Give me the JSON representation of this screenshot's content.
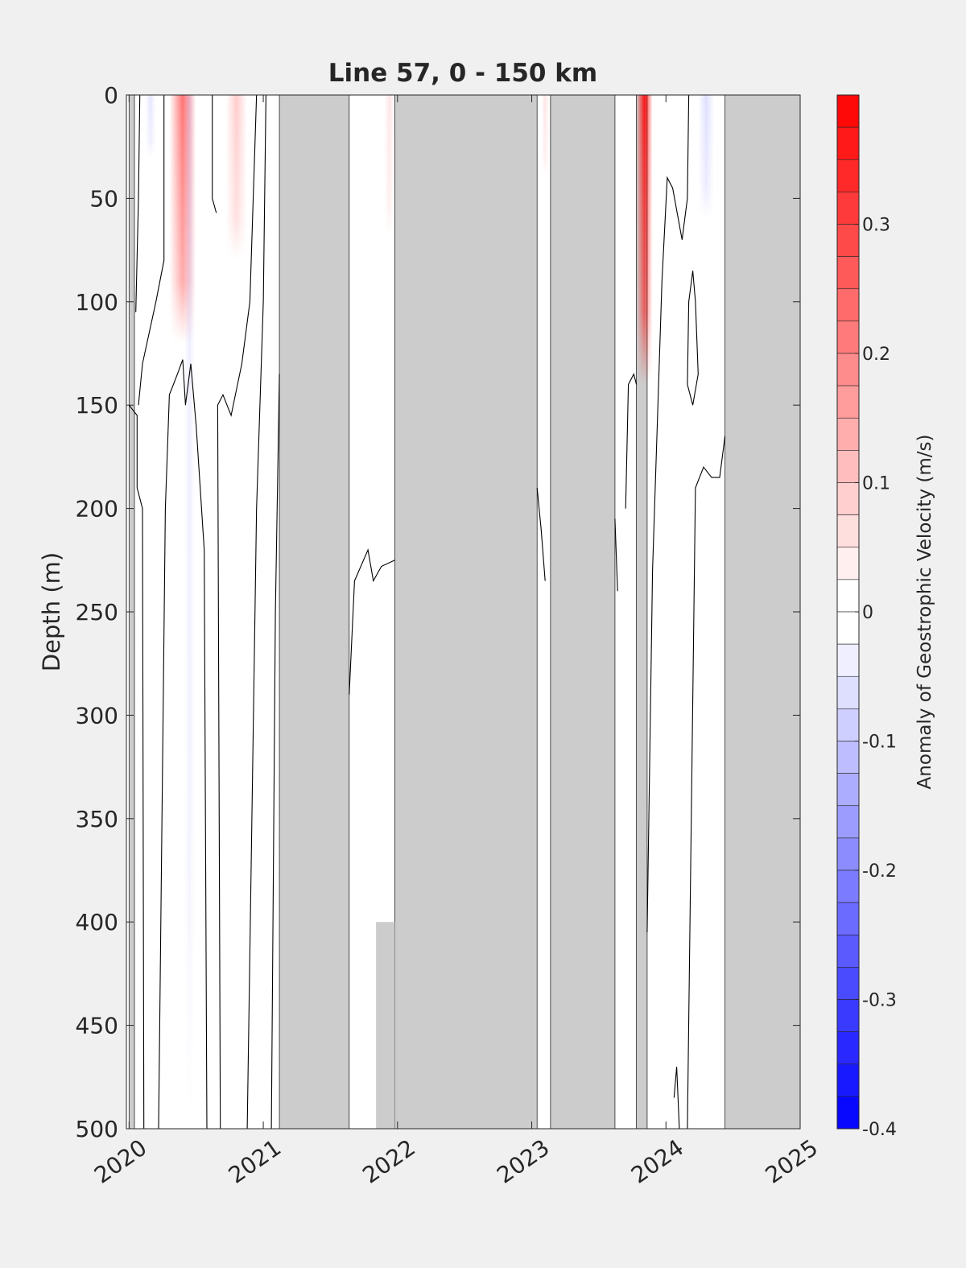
{
  "chart_data": {
    "type": "heatmap",
    "title": "Line 57, 0 - 150 km",
    "ylabel": "Depth (m)",
    "xlabel": "",
    "x_tick_labels": [
      "2020",
      "2021",
      "2022",
      "2023",
      "2024",
      "2025"
    ],
    "x_tick_values": [
      2020,
      2021,
      2022,
      2023,
      2024,
      2025
    ],
    "xlim": [
      2019.98,
      2025.0
    ],
    "y_tick_labels": [
      "0",
      "50",
      "100",
      "150",
      "200",
      "250",
      "300",
      "350",
      "400",
      "450",
      "500"
    ],
    "y_tick_values": [
      0,
      50,
      100,
      150,
      200,
      250,
      300,
      350,
      400,
      450,
      500
    ],
    "ylim": [
      0,
      500
    ],
    "y_reversed": true,
    "grid": false,
    "colorbar": {
      "label": "Anomaly of Geostrophic Velocity (m/s)",
      "range": [
        -0.4,
        0.4
      ],
      "tick_labels": [
        "0.3",
        "0.2",
        "0.1",
        "0",
        "-0.1",
        "-0.2",
        "-0.3",
        "-0.4"
      ],
      "tick_values": [
        0.3,
        0.2,
        0.1,
        0,
        -0.1,
        -0.2,
        -0.3,
        -0.4
      ],
      "levels": 32,
      "low_color": "#0000ff",
      "mid_color": "#ffffff",
      "high_color": "#ff0000"
    },
    "no_data_color": "#cccccc",
    "no_data_periods": [
      {
        "start": 2020.0,
        "end": 2020.04
      },
      {
        "start": 2021.12,
        "end": 2021.64
      },
      {
        "start": 2021.98,
        "end": 2023.04
      },
      {
        "start": 2023.14,
        "end": 2023.62
      },
      {
        "start": 2023.78,
        "end": 2023.86
      },
      {
        "start": 2024.44,
        "end": 2025.0
      }
    ],
    "no_data_partial": [
      {
        "start": 2021.84,
        "end": 2021.98,
        "depth_from": 400,
        "depth_to": 500
      }
    ],
    "anomaly_cores": [
      {
        "time": 2020.4,
        "half_width": 0.1,
        "depth_max": 120,
        "value": 0.22
      },
      {
        "time": 2020.8,
        "half_width": 0.08,
        "depth_max": 80,
        "value": 0.08
      },
      {
        "time": 2023.84,
        "half_width": 0.06,
        "depth_max": 140,
        "value": 0.36
      },
      {
        "time": 2023.1,
        "half_width": 0.03,
        "depth_max": 40,
        "value": 0.04
      },
      {
        "time": 2021.94,
        "half_width": 0.04,
        "depth_max": 70,
        "value": 0.04
      },
      {
        "time": 2020.16,
        "half_width": 0.04,
        "depth_max": 30,
        "value": -0.04
      },
      {
        "time": 2024.3,
        "half_width": 0.06,
        "depth_max": 60,
        "value": -0.05
      },
      {
        "time": 2020.45,
        "half_width": 0.04,
        "depth_max": 500,
        "value": -0.03
      }
    ],
    "contour_lines": [
      {
        "points": [
          [
            2020.05,
            105
          ],
          [
            2020.07,
            50
          ],
          [
            2020.08,
            0
          ]
        ]
      },
      {
        "points": [
          [
            2020.0,
            150
          ],
          [
            2020.06,
            155
          ],
          [
            2020.06,
            190
          ],
          [
            2020.1,
            200
          ],
          [
            2020.11,
            500
          ]
        ]
      },
      {
        "points": [
          [
            2020.07,
            150
          ],
          [
            2020.1,
            130
          ],
          [
            2020.2,
            100
          ],
          [
            2020.26,
            80
          ],
          [
            2020.26,
            0
          ]
        ]
      },
      {
        "points": [
          [
            2020.22,
            500
          ],
          [
            2020.27,
            200
          ],
          [
            2020.3,
            145
          ],
          [
            2020.36,
            135
          ],
          [
            2020.4,
            128
          ],
          [
            2020.42,
            150
          ],
          [
            2020.46,
            130
          ],
          [
            2020.5,
            160
          ],
          [
            2020.56,
            220
          ],
          [
            2020.58,
            500
          ]
        ]
      },
      {
        "points": [
          [
            2020.62,
            0
          ],
          [
            2020.62,
            50
          ],
          [
            2020.65,
            57
          ]
        ]
      },
      {
        "points": [
          [
            2020.68,
            500
          ],
          [
            2020.66,
            150
          ],
          [
            2020.7,
            145
          ],
          [
            2020.73,
            150
          ],
          [
            2020.76,
            155
          ],
          [
            2020.84,
            130
          ],
          [
            2020.9,
            100
          ],
          [
            2020.95,
            0
          ]
        ]
      },
      {
        "points": [
          [
            2020.88,
            500
          ],
          [
            2020.95,
            200
          ],
          [
            2021.0,
            100
          ],
          [
            2021.02,
            0
          ]
        ]
      },
      {
        "points": [
          [
            2021.06,
            500
          ],
          [
            2021.09,
            250
          ],
          [
            2021.12,
            135
          ]
        ]
      },
      {
        "points": [
          [
            2021.64,
            290
          ],
          [
            2021.68,
            235
          ],
          [
            2021.78,
            220
          ],
          [
            2021.82,
            235
          ],
          [
            2021.88,
            228
          ],
          [
            2021.98,
            225
          ]
        ]
      },
      {
        "points": [
          [
            2023.04,
            190
          ],
          [
            2023.07,
            210
          ],
          [
            2023.1,
            235
          ]
        ]
      },
      {
        "points": [
          [
            2023.62,
            205
          ],
          [
            2023.64,
            240
          ]
        ]
      },
      {
        "points": [
          [
            2023.7,
            200
          ],
          [
            2023.72,
            140
          ],
          [
            2023.76,
            135
          ],
          [
            2023.78,
            140
          ]
        ]
      },
      {
        "points": [
          [
            2023.86,
            405
          ],
          [
            2023.9,
            230
          ],
          [
            2023.97,
            90
          ],
          [
            2024.01,
            40
          ],
          [
            2024.05,
            45
          ],
          [
            2024.12,
            70
          ],
          [
            2024.16,
            50
          ],
          [
            2024.17,
            0
          ]
        ]
      },
      {
        "points": [
          [
            2024.06,
            485
          ],
          [
            2024.08,
            470
          ],
          [
            2024.1,
            500
          ]
        ]
      },
      {
        "points": [
          [
            2024.16,
            500
          ],
          [
            2024.22,
            190
          ],
          [
            2024.28,
            180
          ],
          [
            2024.34,
            185
          ],
          [
            2024.4,
            185
          ],
          [
            2024.44,
            165
          ]
        ]
      },
      {
        "points": [
          [
            2024.16,
            140
          ],
          [
            2024.2,
            150
          ],
          [
            2024.24,
            135
          ],
          [
            2024.22,
            100
          ],
          [
            2024.2,
            85
          ],
          [
            2024.17,
            100
          ],
          [
            2024.16,
            140
          ]
        ]
      }
    ]
  }
}
